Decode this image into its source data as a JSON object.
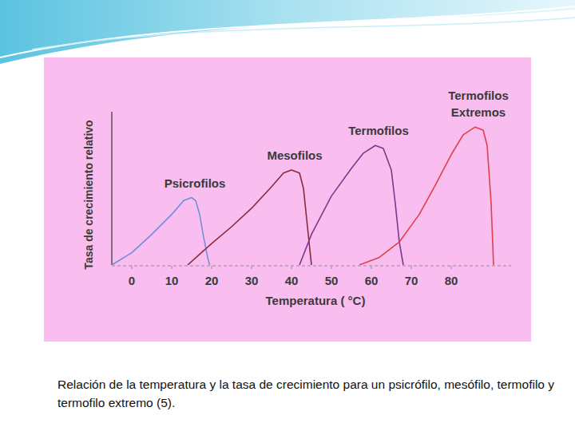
{
  "chart_data": {
    "type": "line",
    "x_label": "Temperatura ( °C)",
    "y_label": "Tasa de crecimiento relativo",
    "xlim": [
      -5,
      95
    ],
    "xticks": [
      0,
      10,
      20,
      30,
      40,
      50,
      60,
      70,
      80
    ],
    "ylim": [
      0,
      100
    ],
    "tick_labels": "x",
    "grid": false,
    "series": [
      {
        "name": "Psicrofilos",
        "color": "#6f8fd8",
        "x": [
          -5,
          0,
          5,
          10,
          13,
          15,
          16,
          17,
          18,
          19,
          19.5
        ],
        "values": [
          0,
          8,
          20,
          33,
          42,
          44,
          42,
          33,
          18,
          5,
          0
        ]
      },
      {
        "name": "Mesofilos",
        "color": "#8b2b3a",
        "x": [
          14,
          20,
          25,
          30,
          35,
          38,
          40,
          42,
          43,
          44,
          45
        ],
        "values": [
          0,
          14,
          25,
          37,
          51,
          60,
          62,
          60,
          50,
          25,
          0
        ]
      },
      {
        "name": "Termofilos",
        "color": "#7a3a8a",
        "x": [
          42,
          45,
          50,
          55,
          58,
          61,
          63,
          65,
          66,
          67,
          68
        ],
        "values": [
          0,
          20,
          45,
          63,
          73,
          78,
          76,
          62,
          40,
          15,
          0
        ]
      },
      {
        "name": "Termofilos Extremos",
        "color": "#e0404a",
        "x": [
          57,
          62,
          67,
          72,
          76,
          80,
          83,
          86,
          88,
          89,
          90,
          90.6
        ],
        "values": [
          0,
          5,
          15,
          33,
          52,
          72,
          85,
          90,
          88,
          78,
          40,
          0
        ]
      }
    ]
  },
  "caption": "Relación de la temperatura y la tasa de crecimiento para un psicrófilo, mesófilo, termofilo y termofilo extremo (5)."
}
